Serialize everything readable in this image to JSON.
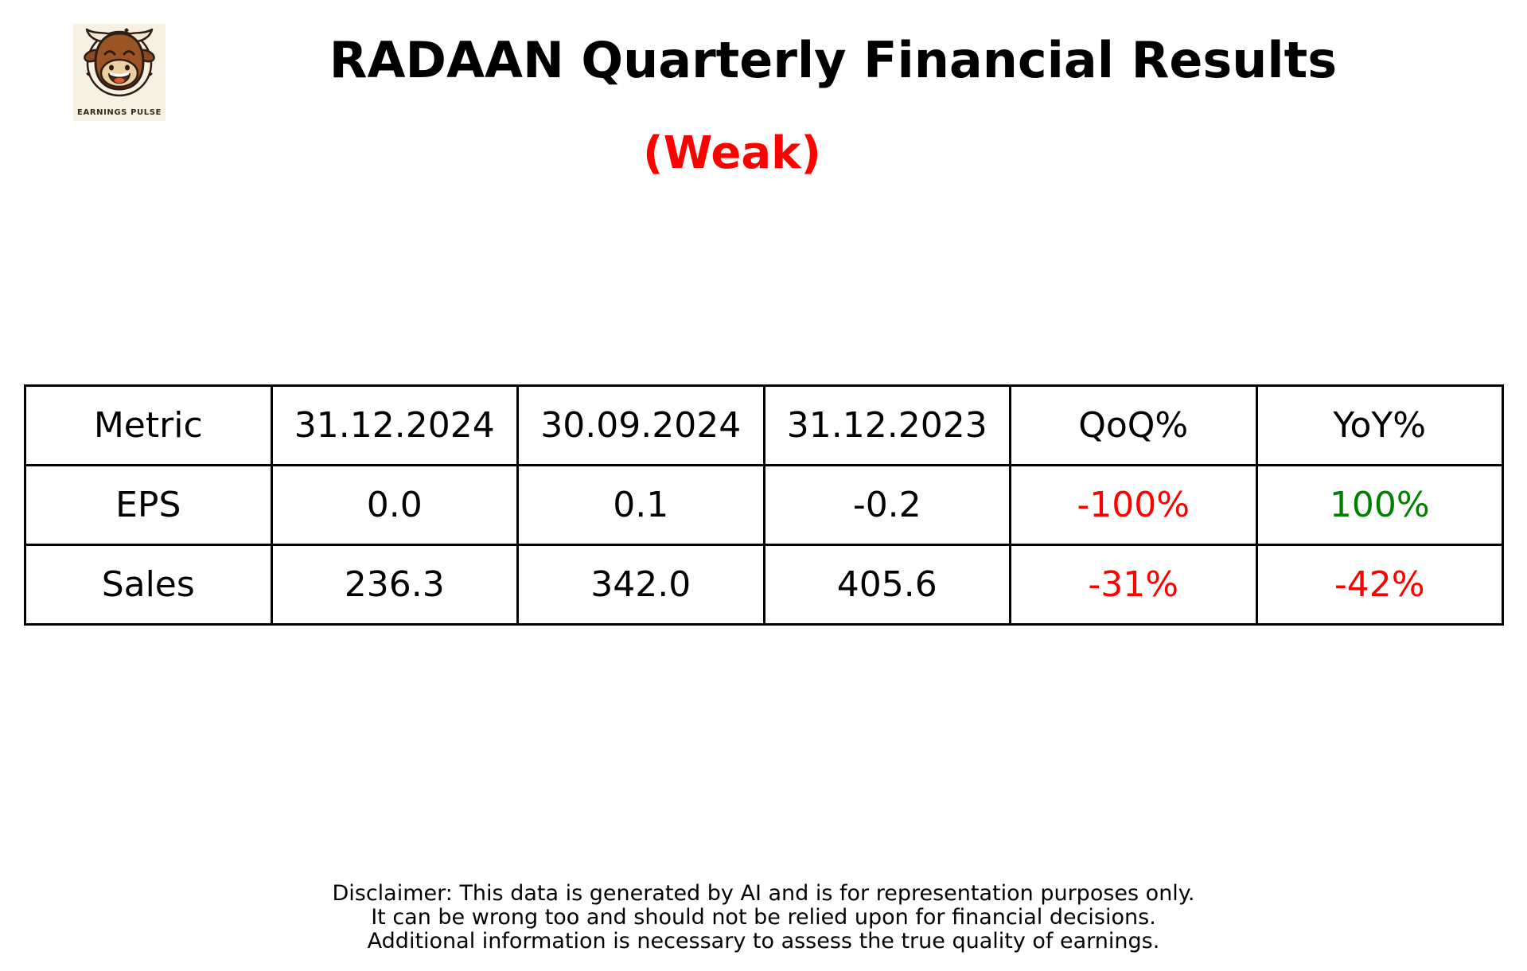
{
  "logo": {
    "brand": "EARNINGS PULSE",
    "icon": "bull-mascot-icon",
    "background_color": "#f7f1e4"
  },
  "header": {
    "title": "RADAAN Quarterly Financial Results",
    "verdict": "(Weak)",
    "verdict_color": "#ff0000"
  },
  "table": {
    "columns": [
      "Metric",
      "31.12.2024",
      "30.09.2024",
      "31.12.2023",
      "QoQ%",
      "YoY%"
    ],
    "rows": [
      {
        "cells": [
          "EPS",
          "0.0",
          "0.1",
          "-0.2",
          "-100%",
          "100%"
        ],
        "cell_colors": [
          "#000000",
          "#000000",
          "#000000",
          "#000000",
          "#ff0000",
          "#008000"
        ]
      },
      {
        "cells": [
          "Sales",
          "236.3",
          "342.0",
          "405.6",
          "-31%",
          "-42%"
        ],
        "cell_colors": [
          "#000000",
          "#000000",
          "#000000",
          "#000000",
          "#ff0000",
          "#ff0000"
        ]
      }
    ]
  },
  "disclaimer": {
    "lines": [
      "Disclaimer: This data is generated by AI and is for representation purposes only.",
      "It can be wrong too and should not be relied upon for financial decisions.",
      "Additional information is necessary to assess the true quality of earnings."
    ]
  },
  "chart_data": {
    "type": "table",
    "title": "RADAAN Quarterly Financial Results",
    "subtitle": "(Weak)",
    "columns": [
      "Metric",
      "31.12.2024",
      "30.09.2024",
      "31.12.2023",
      "QoQ%",
      "YoY%"
    ],
    "rows": [
      [
        "EPS",
        0.0,
        0.1,
        -0.2,
        "-100%",
        "100%"
      ],
      [
        "Sales",
        236.3,
        342.0,
        405.6,
        "-31%",
        "-42%"
      ]
    ],
    "negative_color": "#ff0000",
    "positive_color": "#008000",
    "layout": "header row + 2 data rows, equal column widths, black 3px grid borders"
  }
}
